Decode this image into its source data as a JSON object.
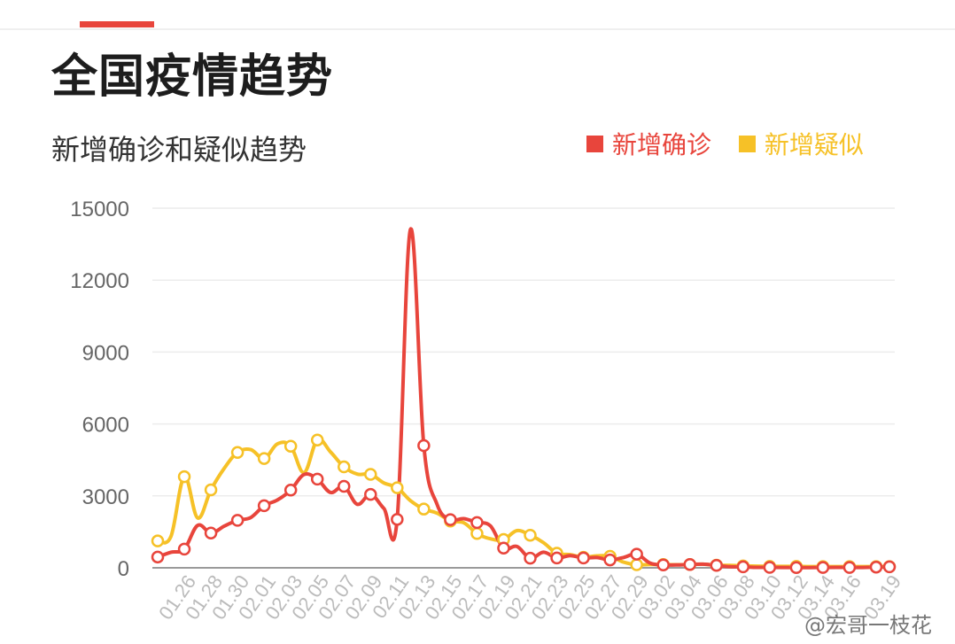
{
  "header": {
    "title": "全国疫情趋势"
  },
  "chart_data": {
    "type": "line",
    "title": "新增确诊和疑似趋势",
    "xlabel": "",
    "ylabel": "",
    "ylim": [
      0,
      15000
    ],
    "yticks": [
      0,
      3000,
      6000,
      9000,
      12000,
      15000
    ],
    "ytick_labels": [
      "0",
      "3000",
      "6000",
      "9000",
      "12000",
      "15000"
    ],
    "grid": true,
    "legend_position": "top-right",
    "x": [
      "01.24",
      "01.25",
      "01.26",
      "01.27",
      "01.28",
      "01.29",
      "01.30",
      "01.31",
      "02.01",
      "02.02",
      "02.03",
      "02.04",
      "02.05",
      "02.06",
      "02.07",
      "02.08",
      "02.09",
      "02.10",
      "02.11",
      "02.12",
      "02.13",
      "02.14",
      "02.15",
      "02.16",
      "02.17",
      "02.18",
      "02.19",
      "02.20",
      "02.21",
      "02.22",
      "02.23",
      "02.24",
      "02.25",
      "02.26",
      "02.27",
      "02.28",
      "02.29",
      "03.01",
      "03.02",
      "03.03",
      "03.04",
      "03.05",
      "03.06",
      "03.07",
      "03.08",
      "03.09",
      "03.10",
      "03.11",
      "03.12",
      "03.13",
      "03.14",
      "03.15",
      "03.16",
      "03.17",
      "03.18",
      "03.19"
    ],
    "xtick_labels": [
      "01.26",
      "01.28",
      "01.30",
      "02.01",
      "02.03",
      "02.05",
      "02.07",
      "02.09",
      "02.11",
      "02.13",
      "02.15",
      "02.17",
      "02.19",
      "02.21",
      "02.23",
      "02.25",
      "02.27",
      "02.29",
      "03.02",
      "03.04",
      "03.06",
      "03.08",
      "03.10",
      "03.12",
      "03.14",
      "03.16",
      "03.19"
    ],
    "series": [
      {
        "name": "新增确诊",
        "color": "#e8453c",
        "values": [
          450,
          650,
          780,
          1770,
          1450,
          1740,
          1980,
          2100,
          2590,
          2830,
          3240,
          3890,
          3700,
          3140,
          3400,
          2650,
          3060,
          2480,
          2020,
          14110,
          5100,
          2640,
          2010,
          2050,
          1890,
          1750,
          820,
          890,
          400,
          650,
          410,
          510,
          410,
          430,
          330,
          430,
          570,
          200,
          120,
          120,
          140,
          150,
          100,
          45,
          40,
          20,
          20,
          15,
          10,
          10,
          15,
          20,
          15,
          15,
          30,
          40
        ]
      },
      {
        "name": "新增疑似",
        "color": "#f6c127",
        "values": [
          1120,
          1310,
          3800,
          2080,
          3250,
          4150,
          4810,
          4930,
          4560,
          5170,
          5070,
          3970,
          5330,
          4830,
          4210,
          3910,
          3900,
          3540,
          3340,
          2800,
          2450,
          2280,
          1950,
          1880,
          1430,
          1210,
          1180,
          1550,
          1360,
          1050,
          610,
          550,
          440,
          500,
          480,
          240,
          130,
          140,
          140,
          130,
          140,
          150,
          110,
          100,
          80,
          70,
          60,
          60,
          60,
          50,
          50,
          50,
          50,
          50,
          50,
          50
        ]
      }
    ]
  },
  "watermark": "@宏哥一枝花"
}
